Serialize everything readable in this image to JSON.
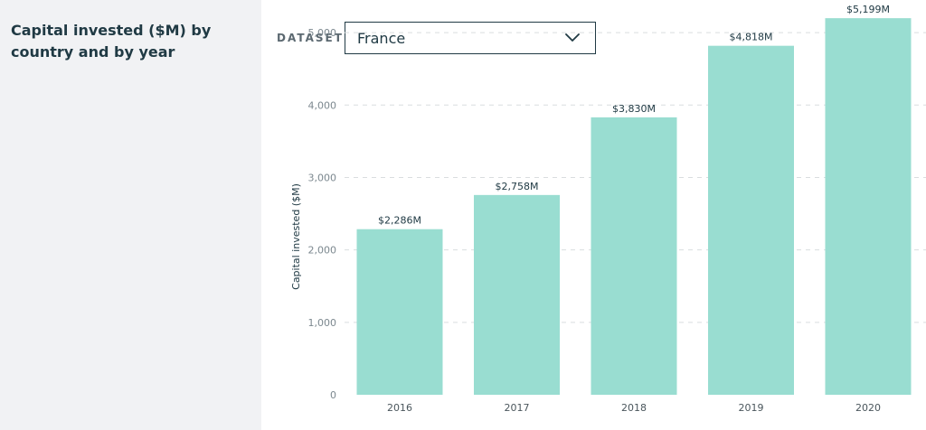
{
  "sidebar": {
    "title": "Capital invested ($M) by country and by year"
  },
  "controls": {
    "dataset_label": "DATASET",
    "dataset_value": "France"
  },
  "colors": {
    "bar": "#99ddd1",
    "text": "#203a44",
    "grid": "#d9dddf"
  },
  "chart_data": {
    "type": "bar",
    "categories": [
      "2016",
      "2017",
      "2018",
      "2019",
      "2020"
    ],
    "values": [
      2286,
      2758,
      3830,
      4818,
      5199
    ],
    "data_labels": [
      "$2,286M",
      "$2,758M",
      "$3,830M",
      "$4,818M",
      "$5,199M"
    ],
    "ylabel": "Capital invested ($M)",
    "xlabel": "",
    "yticks": [
      0,
      1000,
      2000,
      3000,
      4000,
      5000
    ],
    "ytick_labels": [
      "0",
      "1,000",
      "2,000",
      "3,000",
      "4,000",
      "5,000"
    ],
    "ylim": [
      0,
      5450
    ],
    "grid": "horizontal dashed"
  }
}
